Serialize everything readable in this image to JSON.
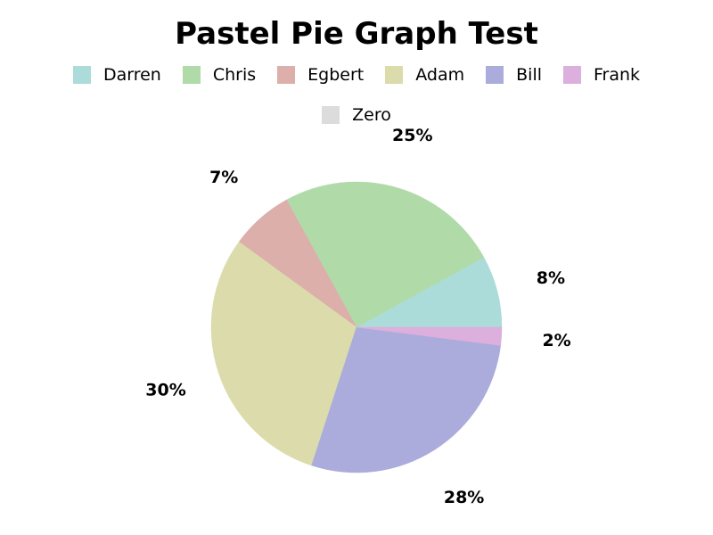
{
  "chart_data": {
    "type": "pie",
    "title": "Pastel Pie Graph Test",
    "legend_placement": "top",
    "slices": [
      {
        "label": "Darren",
        "value": 8,
        "color": "#abdcd9",
        "value_label": "8%"
      },
      {
        "label": "Chris",
        "value": 25,
        "color": "#b0dba8",
        "value_label": "25%"
      },
      {
        "label": "Egbert",
        "value": 7,
        "color": "#dcafab",
        "value_label": "7%"
      },
      {
        "label": "Adam",
        "value": 30,
        "color": "#dbdbab",
        "value_label": "30%"
      },
      {
        "label": "Bill",
        "value": 28,
        "color": "#abacdc",
        "value_label": "28%"
      },
      {
        "label": "Frank",
        "value": 2,
        "color": "#dcafdc",
        "value_label": "2%"
      },
      {
        "label": "Zero",
        "value": 0,
        "color": "#dcdcdc",
        "value_label": ""
      }
    ]
  }
}
